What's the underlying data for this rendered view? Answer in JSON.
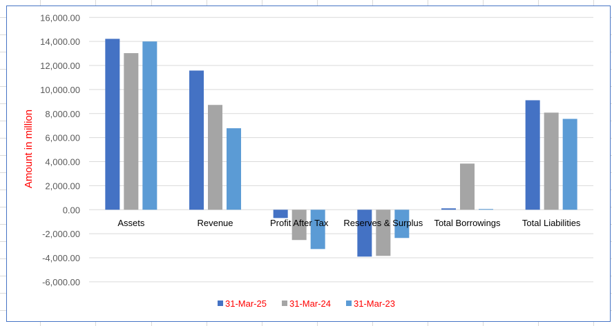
{
  "chart_data": {
    "type": "bar",
    "title": "",
    "xlabel": "",
    "ylabel": "Amount in million",
    "ylim": [
      -6000,
      16000
    ],
    "yticks": [
      "16,000.00",
      "14,000.00",
      "12,000.00",
      "10,000.00",
      "8,000.00",
      "6,000.00",
      "4,000.00",
      "2,000.00",
      "0.00",
      "-2,000.00",
      "-4,000.00",
      "-6,000.00"
    ],
    "ytick_values": [
      16000,
      14000,
      12000,
      10000,
      8000,
      6000,
      4000,
      2000,
      0,
      -2000,
      -4000,
      -6000
    ],
    "categories": [
      "Assets",
      "Revenue",
      "Profit After Tax",
      "Reserves & Surplus",
      "Total Borrowings",
      "Total Liabilities"
    ],
    "series": [
      {
        "name": "31-Mar-25",
        "color": "#4472c4",
        "values": [
          14220,
          11580,
          -690,
          -3900,
          115,
          9110
        ]
      },
      {
        "name": "31-Mar-24",
        "color": "#a5a5a5",
        "values": [
          13030,
          8720,
          -2520,
          -3840,
          3840,
          8080
        ]
      },
      {
        "name": "31-Mar-23",
        "color": "#5b9bd5",
        "values": [
          14000,
          6780,
          -3270,
          -2350,
          60,
          7560
        ]
      }
    ],
    "grid": true,
    "legend": "bottom"
  }
}
